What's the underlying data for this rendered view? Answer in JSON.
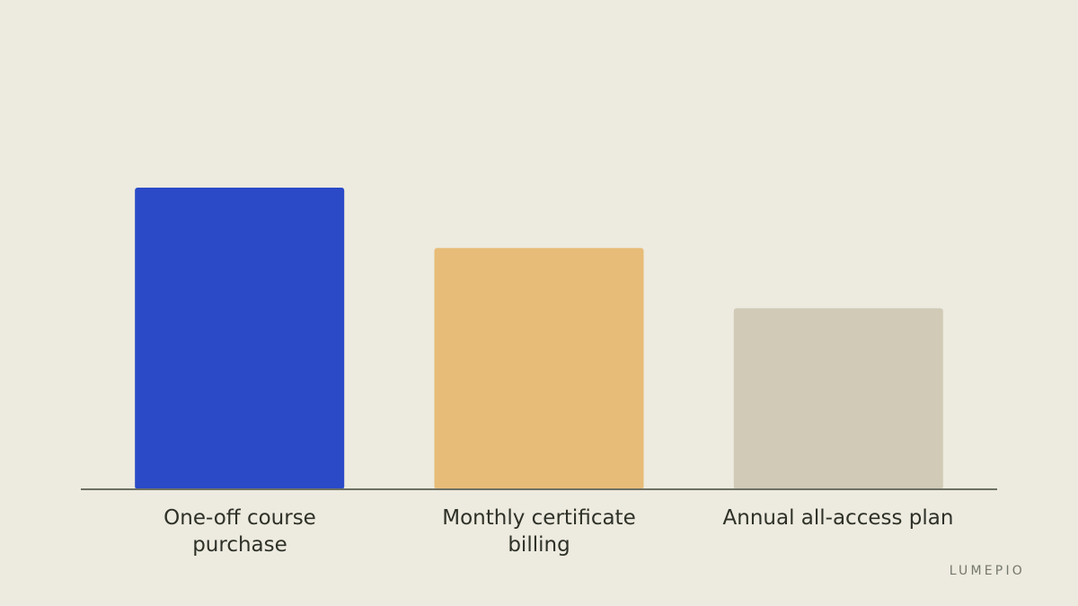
{
  "chart_data": {
    "type": "bar",
    "categories": [
      "One-off course purchase",
      "Monthly certificate billing",
      "Annual all-access plan"
    ],
    "values": [
      100,
      80,
      60
    ],
    "colors": [
      "#2a4ac8",
      "#e7bc78",
      "#d0cab7"
    ],
    "title": "",
    "xlabel": "",
    "ylabel": "",
    "ylim": [
      0,
      100
    ],
    "grid": false,
    "baseline_color": "#6e7164"
  },
  "brand": "LUMEPIO"
}
